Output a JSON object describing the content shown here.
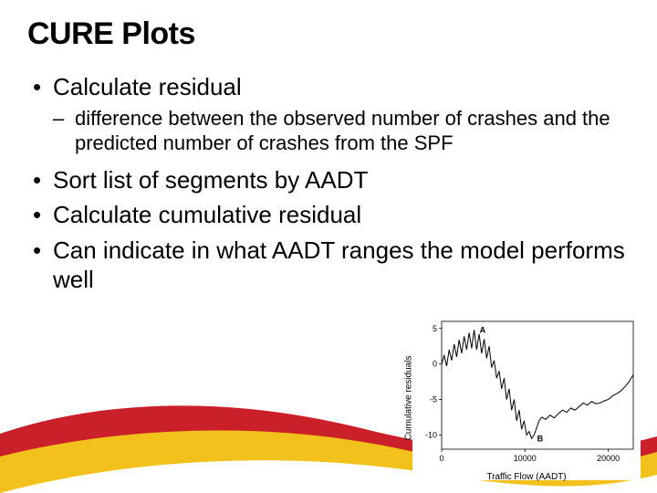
{
  "title": "CURE Plots",
  "bullets": [
    {
      "text": "Calculate residual",
      "sub": [
        "difference between the observed number of crashes and the predicted number of crashes from the SPF"
      ]
    },
    {
      "text": "Sort list of segments by AADT"
    },
    {
      "text": "Calculate cumulative residual"
    },
    {
      "text": "Can indicate in what AADT ranges the model performs well"
    }
  ],
  "wave": {
    "red": "#c9202a",
    "yellow": "#f3c11b",
    "white": "#ffffff"
  },
  "chart": {
    "type": "line",
    "xlabel": "Traffic Flow (AADT)",
    "ylabel": "Cumulative residuals",
    "xlim": [
      0,
      23000
    ],
    "ylim": [
      -12,
      6
    ],
    "xticks": [
      0,
      10000,
      20000
    ],
    "yticks": [
      -10,
      -5,
      0,
      5
    ],
    "background_color": "#ffffff",
    "axis_color": "#000000",
    "line_color": "#000000",
    "line_width": 1,
    "label_fontsize": 10,
    "tick_fontsize": 9,
    "series": {
      "x": [
        0,
        300,
        600,
        900,
        1200,
        1500,
        1800,
        2100,
        2400,
        2700,
        3000,
        3300,
        3600,
        3900,
        4200,
        4500,
        4800,
        5100,
        5400,
        5700,
        6000,
        6300,
        6600,
        6900,
        7200,
        7500,
        7800,
        8100,
        8400,
        8700,
        9000,
        9300,
        9600,
        9900,
        10200,
        10500,
        10800,
        11100,
        11400,
        11700,
        12000,
        12500,
        13000,
        13500,
        14000,
        14500,
        15000,
        15500,
        16000,
        16500,
        17000,
        17500,
        18000,
        18500,
        19000,
        19500,
        20000,
        20500,
        21000,
        21500,
        22000,
        22500,
        23000
      ],
      "y": [
        0,
        1.2,
        -0.3,
        2.0,
        0.5,
        2.8,
        1.0,
        3.4,
        1.5,
        3.9,
        2.0,
        4.4,
        2.2,
        4.8,
        2.0,
        4.2,
        1.5,
        3.5,
        0.8,
        2.5,
        -0.5,
        0.5,
        -2.0,
        -1.0,
        -3.5,
        -2.0,
        -5.0,
        -3.5,
        -6.5,
        -5.0,
        -8.0,
        -6.5,
        -9.2,
        -8.0,
        -10.0,
        -9.5,
        -10.5,
        -10.0,
        -9.0,
        -8.0,
        -7.5,
        -7.8,
        -7.2,
        -7.6,
        -7.0,
        -6.5,
        -6.8,
        -6.2,
        -6.5,
        -6.0,
        -5.5,
        -5.8,
        -5.3,
        -5.6,
        -5.5,
        -5.2,
        -5.0,
        -4.5,
        -4.2,
        -3.8,
        -3.2,
        -2.5,
        -1.5
      ]
    },
    "markers": [
      {
        "x": 3900,
        "y": 4.8,
        "label": "A"
      },
      {
        "x": 10800,
        "y": -10.5,
        "label": "B"
      }
    ]
  }
}
